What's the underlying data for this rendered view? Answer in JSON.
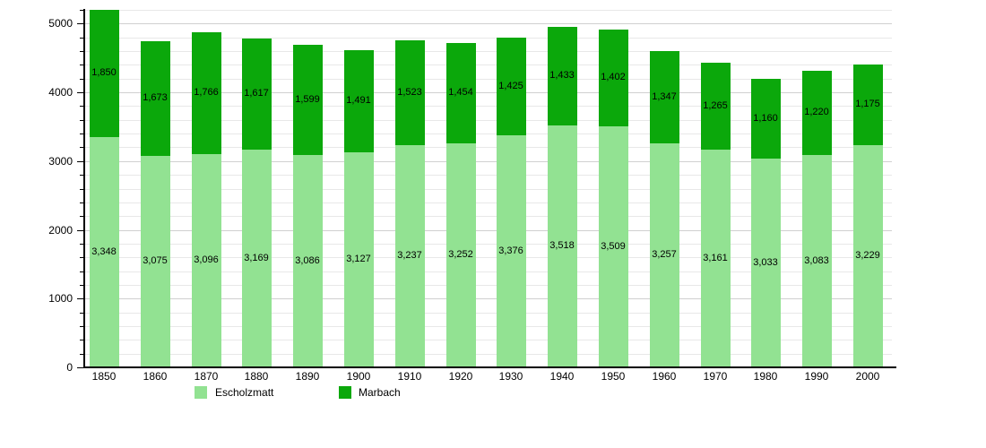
{
  "chart_data": {
    "type": "bar",
    "stacked": true,
    "title": "",
    "xlabel": "",
    "ylabel": "",
    "categories": [
      "1850",
      "1860",
      "1870",
      "1880",
      "1890",
      "1900",
      "1910",
      "1920",
      "1930",
      "1940",
      "1950",
      "1960",
      "1970",
      "1980",
      "1990",
      "2000"
    ],
    "series": [
      {
        "name": "Escholzmatt",
        "color": "#92E292",
        "values": [
          3348,
          3075,
          3096,
          3169,
          3086,
          3127,
          3237,
          3252,
          3376,
          3518,
          3509,
          3257,
          3161,
          3033,
          3083,
          3229
        ],
        "labels": [
          "3,348",
          "3,075",
          "3,096",
          "3,169",
          "3,086",
          "3,127",
          "3,237",
          "3,252",
          "3,376",
          "3,518",
          "3,509",
          "3,257",
          "3,161",
          "3,033",
          "3,083",
          "3,229"
        ]
      },
      {
        "name": "Marbach",
        "color": "#0BA80B",
        "values": [
          1850,
          1673,
          1766,
          1617,
          1599,
          1491,
          1523,
          1454,
          1425,
          1433,
          1402,
          1347,
          1265,
          1160,
          1220,
          1175
        ],
        "labels": [
          "1,850",
          "1,673",
          "1,766",
          "1,617",
          "1,599",
          "1,491",
          "1,523",
          "1,454",
          "1,425",
          "1,433",
          "1,402",
          "1,347",
          "1,265",
          "1,160",
          "1,220",
          "1,175"
        ]
      }
    ],
    "ylim": [
      0,
      5200
    ],
    "ytick_step": 1000,
    "yminor_step": 200,
    "ytick_labels": [
      "0",
      "1000",
      "2000",
      "3000",
      "4000",
      "5000"
    ],
    "grid": "on",
    "legend_position": "bottom-left"
  },
  "colors": {
    "background": "#FFFFFF",
    "axis": "#000000",
    "grid_minor": "#E8E8E8",
    "grid_major": "#D0D0D0",
    "text": "#000000"
  }
}
